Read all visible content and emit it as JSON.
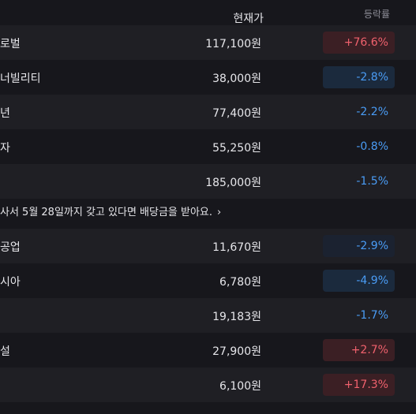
{
  "header": {
    "price_label": "현재가",
    "change_label": "등락률"
  },
  "rows_top": [
    {
      "name": "로벌",
      "price": "117,100원",
      "change": "+76.6%",
      "dir": "up",
      "badge": "strong"
    },
    {
      "name": "너빌리티",
      "price": "38,000원",
      "change": "-2.8%",
      "dir": "down",
      "badge": "strong"
    },
    {
      "name": "년",
      "price": "77,400원",
      "change": "-2.2%",
      "dir": "down",
      "badge": "none"
    },
    {
      "name": "자",
      "price": "55,250원",
      "change": "-0.8%",
      "dir": "down",
      "badge": "none"
    },
    {
      "name": "",
      "price": "185,000원",
      "change": "-1.5%",
      "dir": "down",
      "badge": "none"
    }
  ],
  "notice": {
    "text": "사서 5월 28일까지 갖고 있다면 배당금을 받아요.",
    "chevron": "›"
  },
  "rows_bottom": [
    {
      "name": "공업",
      "price": "11,670원",
      "change": "-2.9%",
      "dir": "down",
      "badge": "mild"
    },
    {
      "name": "시아",
      "price": "6,780원",
      "change": "-4.9%",
      "dir": "down",
      "badge": "strong"
    },
    {
      "name": "",
      "price": "19,183원",
      "change": "-1.7%",
      "dir": "down",
      "badge": "none"
    },
    {
      "name": "설",
      "price": "27,900원",
      "change": "+2.7%",
      "dir": "up",
      "badge": "strong"
    },
    {
      "name": "",
      "price": "6,100원",
      "change": "+17.3%",
      "dir": "up",
      "badge": "strong"
    }
  ]
}
